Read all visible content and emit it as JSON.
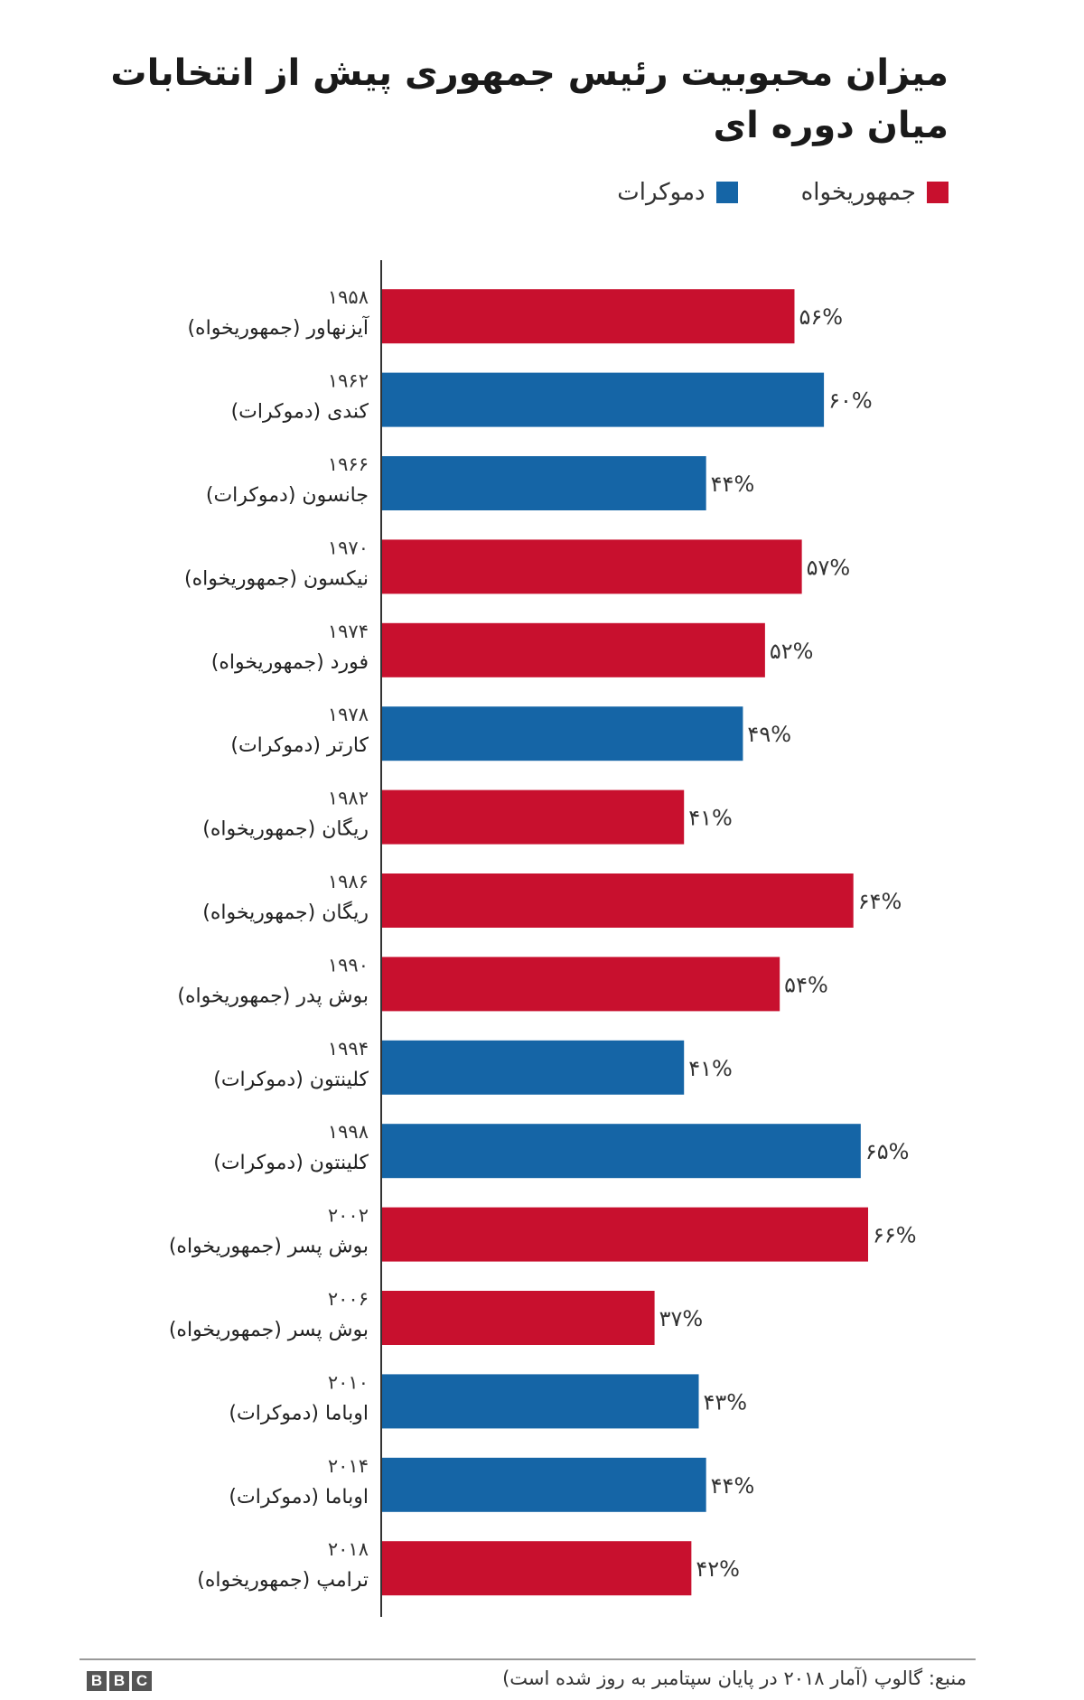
{
  "chart_data": {
    "type": "bar",
    "orientation": "horizontal",
    "title": [
      "میزان محبوبیت رئیس جمهوری پیش از انتخابات",
      "میان دوره ای"
    ],
    "legend": [
      {
        "label": "جمهوریخواه",
        "color": "#c8102e"
      },
      {
        "label": "دموکرات",
        "color": "#1565a6"
      }
    ],
    "legend_position": "top-right",
    "grid": false,
    "xlim": [
      0,
      70
    ],
    "bars": [
      {
        "year": "۱۹۵۸",
        "name": "آیزنهاور (جمهوریخواه)",
        "party": "R",
        "value": 56,
        "label": "۵۶%"
      },
      {
        "year": "۱۹۶۲",
        "name": "کندی (دموکرات)",
        "party": "D",
        "value": 60,
        "label": "۶۰%"
      },
      {
        "year": "۱۹۶۶",
        "name": "جانسون (دموکرات)",
        "party": "D",
        "value": 44,
        "label": "۴۴%"
      },
      {
        "year": "۱۹۷۰",
        "name": "نیکسون (جمهوریخواه)",
        "party": "R",
        "value": 57,
        "label": "۵۷%"
      },
      {
        "year": "۱۹۷۴",
        "name": "فورد (جمهوریخواه)",
        "party": "R",
        "value": 52,
        "label": "۵۲%"
      },
      {
        "year": "۱۹۷۸",
        "name": "کارتر (دموکرات)",
        "party": "D",
        "value": 49,
        "label": "۴۹%"
      },
      {
        "year": "۱۹۸۲",
        "name": "ریگان (جمهوریخواه)",
        "party": "R",
        "value": 41,
        "label": "۴۱%"
      },
      {
        "year": "۱۹۸۶",
        "name": "ریگان (جمهوریخواه)",
        "party": "R",
        "value": 64,
        "label": "۶۴%"
      },
      {
        "year": "۱۹۹۰",
        "name": "بوش پدر (جمهوریخواه)",
        "party": "R",
        "value": 54,
        "label": "۵۴%"
      },
      {
        "year": "۱۹۹۴",
        "name": "کلینتون (دموکرات)",
        "party": "D",
        "value": 41,
        "label": "۴۱%"
      },
      {
        "year": "۱۹۹۸",
        "name": "کلینتون (دموکرات)",
        "party": "D",
        "value": 65,
        "label": "۶۵%"
      },
      {
        "year": "۲۰۰۲",
        "name": "بوش پسر (جمهوریخواه)",
        "party": "R",
        "value": 66,
        "label": "۶۶%"
      },
      {
        "year": "۲۰۰۶",
        "name": "بوش پسر (جمهوریخواه)",
        "party": "R",
        "value": 37,
        "label": "۳۷%"
      },
      {
        "year": "۲۰۱۰",
        "name": "اوباما (دموکرات)",
        "party": "D",
        "value": 43,
        "label": "۴۳%"
      },
      {
        "year": "۲۰۱۴",
        "name": "اوباما (دموکرات)",
        "party": "D",
        "value": 44,
        "label": "۴۴%"
      },
      {
        "year": "۲۰۱۸",
        "name": "ترامپ (جمهوریخواه)",
        "party": "R",
        "value": 42,
        "label": "۴۲%"
      }
    ],
    "colors": {
      "R": "#c8102e",
      "D": "#1565a6"
    },
    "source": "منبع: گالوپ (آمار ۲۰۱۸ در پایان سپتامبر به روز شده است)"
  },
  "branding": {
    "logo": [
      "B",
      "B",
      "C"
    ]
  }
}
